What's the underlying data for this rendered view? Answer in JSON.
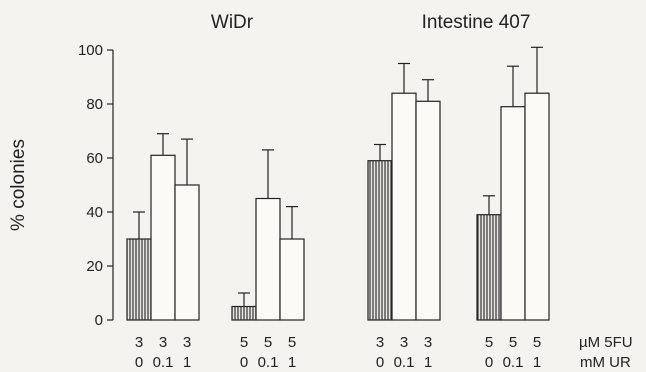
{
  "chart_data": {
    "type": "bar",
    "ylabel": "% colonies",
    "ylim": [
      0,
      100
    ],
    "yticks": [
      0,
      20,
      40,
      60,
      80,
      100
    ],
    "row_labels": {
      "fu": "µM 5FU",
      "ur": "mM UR"
    },
    "panels": [
      {
        "title": "WiDr",
        "groups": [
          {
            "bars": [
              {
                "fu": "3",
                "ur": "0",
                "value": 30,
                "error": 10,
                "fill": "hatched"
              },
              {
                "fu": "3",
                "ur": "0.1",
                "value": 61,
                "error": 8,
                "fill": "open"
              },
              {
                "fu": "3",
                "ur": "1",
                "value": 50,
                "error": 17,
                "fill": "open"
              }
            ]
          },
          {
            "bars": [
              {
                "fu": "5",
                "ur": "0",
                "value": 5,
                "error": 5,
                "fill": "hatched"
              },
              {
                "fu": "5",
                "ur": "0.1",
                "value": 45,
                "error": 18,
                "fill": "open"
              },
              {
                "fu": "5",
                "ur": "1",
                "value": 30,
                "error": 12,
                "fill": "open"
              }
            ]
          }
        ]
      },
      {
        "title": "Intestine 407",
        "groups": [
          {
            "bars": [
              {
                "fu": "3",
                "ur": "0",
                "value": 59,
                "error": 6,
                "fill": "hatched"
              },
              {
                "fu": "3",
                "ur": "0.1",
                "value": 84,
                "error": 11,
                "fill": "open"
              },
              {
                "fu": "3",
                "ur": "1",
                "value": 81,
                "error": 8,
                "fill": "open"
              }
            ]
          },
          {
            "bars": [
              {
                "fu": "5",
                "ur": "0",
                "value": 39,
                "error": 7,
                "fill": "hatched"
              },
              {
                "fu": "5",
                "ur": "0.1",
                "value": 79,
                "error": 15,
                "fill": "open"
              },
              {
                "fu": "5",
                "ur": "1",
                "value": 84,
                "error": 17,
                "fill": "open"
              }
            ]
          }
        ]
      }
    ]
  }
}
